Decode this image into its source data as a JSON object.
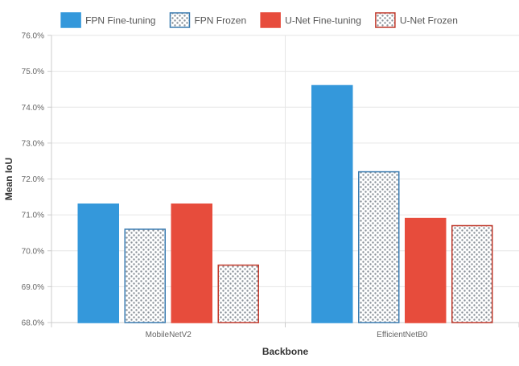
{
  "chart_data": {
    "type": "bar",
    "title": "",
    "xlabel": "Backbone",
    "ylabel": "Mean IoU",
    "categories": [
      "MobileNetV2",
      "EfficientNetB0"
    ],
    "ylim": [
      68.0,
      76.0
    ],
    "yticks": [
      68.0,
      69.0,
      70.0,
      71.0,
      72.0,
      73.0,
      74.0,
      75.0,
      76.0
    ],
    "ytick_format": "percent_1dp",
    "grid": true,
    "legend_position": "top-center",
    "series": [
      {
        "name": "FPN Fine-tuning",
        "values": [
          71.3,
          74.6
        ],
        "color": "#3498db",
        "fill": "solid"
      },
      {
        "name": "FPN Frozen",
        "values": [
          70.6,
          72.2
        ],
        "color": "#3a7bb0",
        "fill": "hatched"
      },
      {
        "name": "U-Net Fine-tuning",
        "values": [
          71.3,
          70.9
        ],
        "color": "#e74c3c",
        "fill": "solid"
      },
      {
        "name": "U-Net Frozen",
        "values": [
          69.6,
          70.7
        ],
        "color": "#c0392b",
        "fill": "hatched"
      }
    ]
  }
}
